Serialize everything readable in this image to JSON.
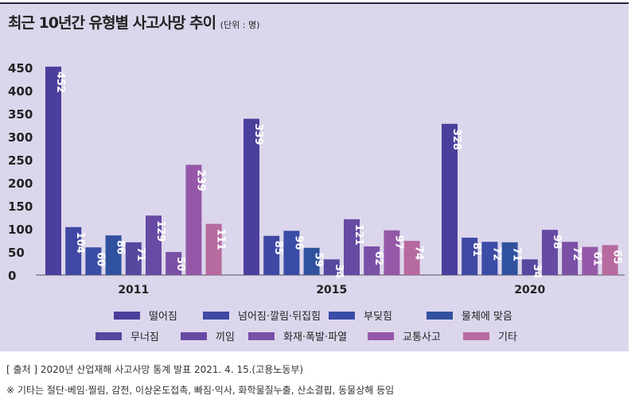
{
  "chart_data": {
    "type": "bar",
    "title": "최근 10년간 유형별 사고사망 추이",
    "unit": "(단위 : 명)",
    "categories": [
      "2011",
      "2015",
      "2020"
    ],
    "ylim": [
      0,
      450
    ],
    "yticks": [
      0,
      50,
      100,
      150,
      200,
      250,
      300,
      350,
      400,
      450
    ],
    "grid": false,
    "legend": "bottom",
    "series": [
      {
        "name": "떨어짐",
        "color": "#4a3f9c",
        "values": [
          452,
          339,
          328
        ]
      },
      {
        "name": "넘어짐·깔림·뒤집힘",
        "color": "#3f49a3",
        "values": [
          104,
          85,
          81
        ]
      },
      {
        "name": "부딪힘",
        "color": "#3a4ca6",
        "values": [
          60,
          96,
          72
        ]
      },
      {
        "name": "물체에 맞음",
        "color": "#30529e",
        "values": [
          86,
          59,
          71
        ]
      },
      {
        "name": "무너짐",
        "color": "#56479f",
        "values": [
          71,
          34,
          34
        ]
      },
      {
        "name": "끼임",
        "color": "#674aa3",
        "values": [
          129,
          121,
          98
        ]
      },
      {
        "name": "화재·폭발·파열",
        "color": "#7a4fa6",
        "values": [
          50,
          62,
          72
        ]
      },
      {
        "name": "교통사고",
        "color": "#9558a8",
        "values": [
          239,
          97,
          61
        ]
      },
      {
        "name": "기타",
        "color": "#b76a9f",
        "values": [
          111,
          74,
          65
        ]
      }
    ]
  },
  "source": "[ 출처 ] 2020년 산업재해 사고사망 통계 발표 2021. 4. 15.(고용노동부)",
  "note": "※ 기타는 절단·베임·찔림, 감전, 이상온도접촉, 빠짐·익사, 화학물질누출, 산소결핍, 동물상해 등임"
}
